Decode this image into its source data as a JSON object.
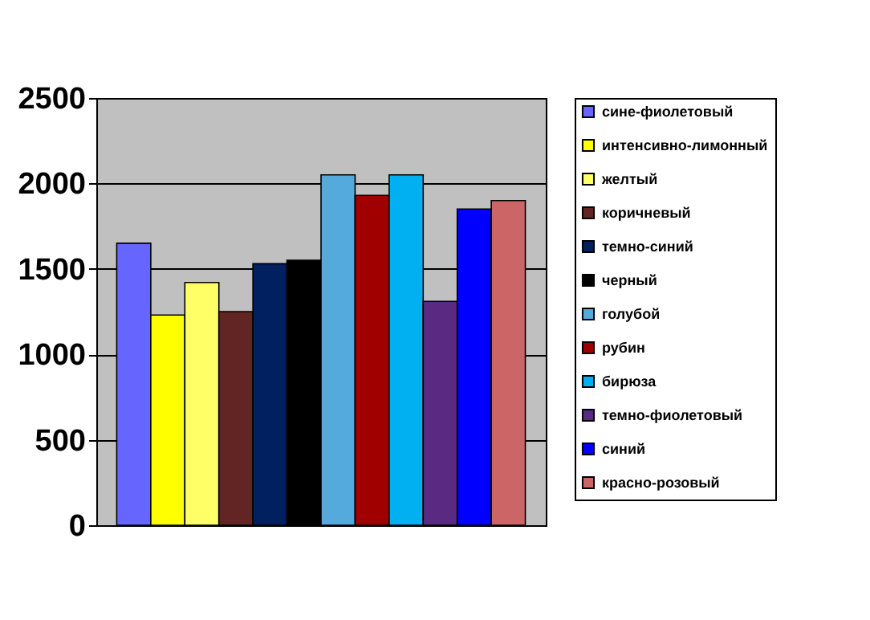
{
  "chart_data": {
    "type": "bar",
    "categories": [
      null
    ],
    "series": [
      {
        "name": "сине-фиолетовый",
        "color": "#6666ff",
        "values": [
          1650
        ]
      },
      {
        "name": "интенсивно-лимонный",
        "color": "#ffff00",
        "values": [
          1230
        ]
      },
      {
        "name": "желтый",
        "color": "#ffff66",
        "values": [
          1420
        ]
      },
      {
        "name": "коричневый",
        "color": "#632523",
        "values": [
          1250
        ]
      },
      {
        "name": "темно-синий",
        "color": "#002060",
        "values": [
          1530
        ]
      },
      {
        "name": "черный",
        "color": "#000000",
        "values": [
          1550
        ]
      },
      {
        "name": "голубой",
        "color": "#55aadd",
        "values": [
          2050
        ]
      },
      {
        "name": "рубин",
        "color": "#a00000",
        "values": [
          1930
        ]
      },
      {
        "name": "бирюза",
        "color": "#00b0f0",
        "values": [
          2050
        ]
      },
      {
        "name": "темно-фиолетовый",
        "color": "#5a2a82",
        "values": [
          1310
        ]
      },
      {
        "name": "синий",
        "color": "#0000ff",
        "values": [
          1850
        ]
      },
      {
        "name": "красно-розовый",
        "color": "#cc6666",
        "values": [
          1900
        ]
      }
    ],
    "ylim": [
      0,
      2500
    ],
    "yticks": [
      0,
      500,
      1000,
      1500,
      2000,
      2500
    ],
    "grid": "y",
    "legend": "right",
    "tick_labels": "y"
  }
}
